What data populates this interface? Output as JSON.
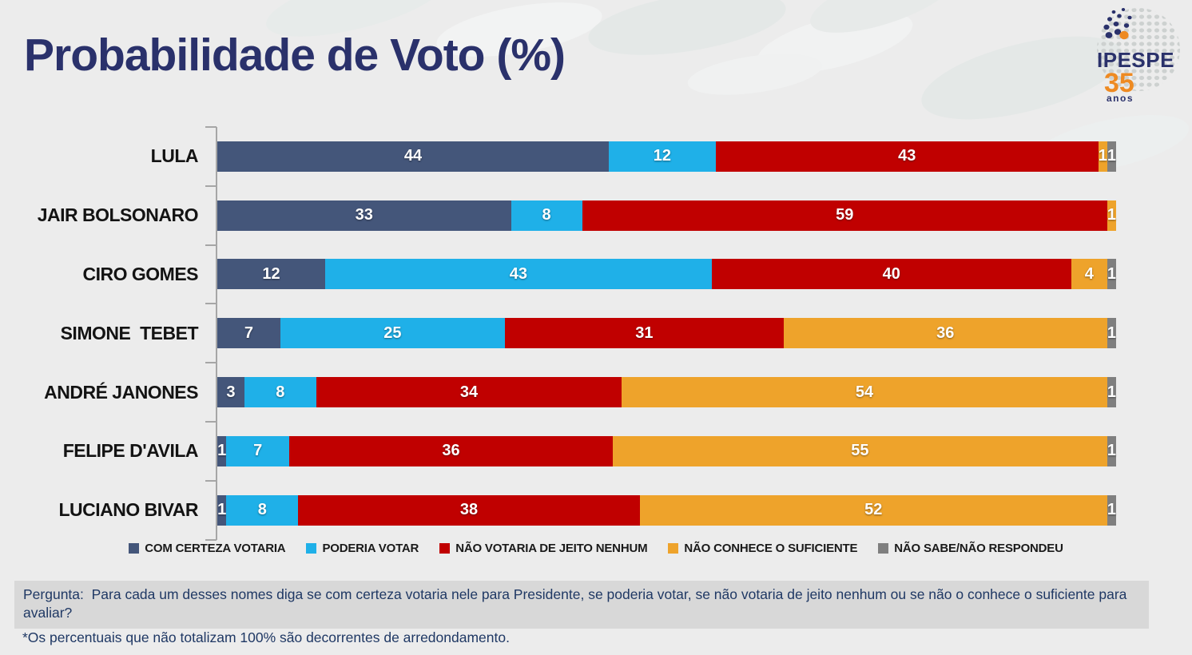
{
  "title": "Probabilidade de Voto (%)",
  "logo": {
    "brand": "IPESPE",
    "number": "35",
    "caption": "anos"
  },
  "colors": {
    "background": "#ECECEC",
    "title_navy": "#2A316B",
    "logo_orange": "#EE8A22",
    "question_bg": "#D8D8D8",
    "question_text": "#1F3864",
    "axis": "#A6A6A6"
  },
  "chart_data": {
    "type": "bar",
    "stacked": true,
    "orientation": "horizontal",
    "value_unit": "%",
    "xlim": [
      0,
      100
    ],
    "grid": false,
    "legend_position": "bottom",
    "categories": [
      "LULA",
      "JAIR BOLSONARO",
      "CIRO GOMES",
      "SIMONE  TEBET",
      "ANDRÉ JANONES",
      "FELIPE D'AVILA",
      "LUCIANO BIVAR"
    ],
    "series": [
      {
        "name": "COM CERTEZA VOTARIA",
        "color": "#44567A",
        "values": [
          44,
          33,
          12,
          7,
          3,
          1,
          1
        ]
      },
      {
        "name": "PODERIA VOTAR",
        "color": "#1FB0E8",
        "values": [
          12,
          8,
          43,
          25,
          8,
          7,
          8
        ]
      },
      {
        "name": "NÃO VOTARIA DE JEITO NENHUM",
        "color": "#C00000",
        "values": [
          43,
          59,
          40,
          31,
          34,
          36,
          38
        ]
      },
      {
        "name": "NÃO CONHECE O SUFICIENTE",
        "color": "#EEA32B",
        "values": [
          1,
          1,
          4,
          36,
          54,
          55,
          52
        ]
      },
      {
        "name": "NÃO SABE/NÃO RESPONDEU",
        "color": "#7F7F7F",
        "values": [
          1,
          0,
          1,
          1,
          1,
          1,
          1
        ]
      }
    ]
  },
  "question": "Pergunta:  Para cada um desses nomes diga se com certeza votaria nele para Presidente, se poderia votar, se não votaria de jeito nenhum ou se não o conhece o suficiente para avaliar?",
  "footnote": "*Os percentuais que não totalizam 100% são decorrentes de arredondamento."
}
